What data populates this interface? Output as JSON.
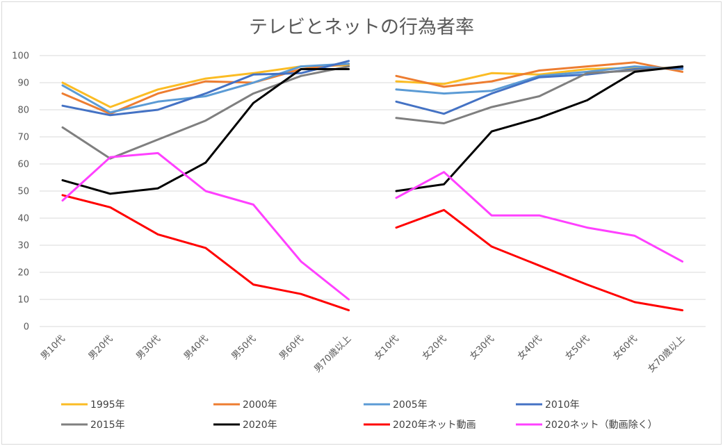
{
  "chart_data": {
    "type": "line",
    "title": "テレビとネットの行為者率",
    "ylim": [
      0,
      100
    ],
    "yticks": [
      0,
      10,
      20,
      30,
      40,
      50,
      60,
      70,
      80,
      90,
      100
    ],
    "grid": true,
    "legend_position": "bottom",
    "categories_male": [
      "男10代",
      "男20代",
      "男30代",
      "男40代",
      "男50代",
      "男60代",
      "男70歳以上"
    ],
    "categories_female": [
      "女10代",
      "女20代",
      "女30代",
      "女40代",
      "女50代",
      "女60代",
      "女70歳以上"
    ],
    "series": [
      {
        "name": "1995年",
        "color": "#fbbc24",
        "male": [
          90,
          81,
          87.5,
          91.5,
          93.5,
          96,
          96.5
        ],
        "female": [
          90.5,
          89.5,
          93.5,
          93,
          95,
          95.5,
          95.5
        ]
      },
      {
        "name": "2000年",
        "color": "#ed7d31",
        "male": [
          86,
          78.5,
          86,
          90.5,
          90,
          95,
          97
        ],
        "female": [
          92.5,
          88.5,
          90.5,
          94.5,
          96,
          97.5,
          94
        ]
      },
      {
        "name": "2005年",
        "color": "#5b9bd5",
        "male": [
          89,
          79,
          83,
          85,
          90,
          96,
          97
        ],
        "female": [
          87.5,
          86,
          87,
          92.5,
          94,
          96,
          95
        ]
      },
      {
        "name": "2010年",
        "color": "#4472c4",
        "male": [
          81.5,
          78,
          80,
          86,
          93,
          93.5,
          98
        ],
        "female": [
          83,
          78.5,
          86,
          92,
          93,
          95,
          95.5
        ]
      },
      {
        "name": "2015年",
        "color": "#7f7f7f",
        "male": [
          73.5,
          62,
          69,
          76,
          86,
          92.5,
          96
        ],
        "female": [
          77,
          75,
          81,
          85,
          93.5,
          94.5,
          96
        ]
      },
      {
        "name": "2020年",
        "color": "#000000",
        "male": [
          54,
          49,
          51,
          60.5,
          82.5,
          95,
          95
        ],
        "female": [
          50,
          52.5,
          72,
          77,
          83.5,
          94,
          96
        ]
      },
      {
        "name": "2020年ネット動画",
        "color": "#ff0000",
        "male": [
          48.5,
          44,
          34,
          29,
          15.5,
          12,
          6
        ],
        "female": [
          36.5,
          43,
          29.5,
          22.5,
          15.5,
          9,
          6
        ]
      },
      {
        "name": "2020ネット（動画除く）",
        "color": "#ff40ff",
        "male": [
          46.5,
          62.5,
          64,
          50,
          45,
          24,
          10
        ],
        "female": [
          47.5,
          57,
          41,
          41,
          36.5,
          33.5,
          24
        ]
      }
    ]
  }
}
